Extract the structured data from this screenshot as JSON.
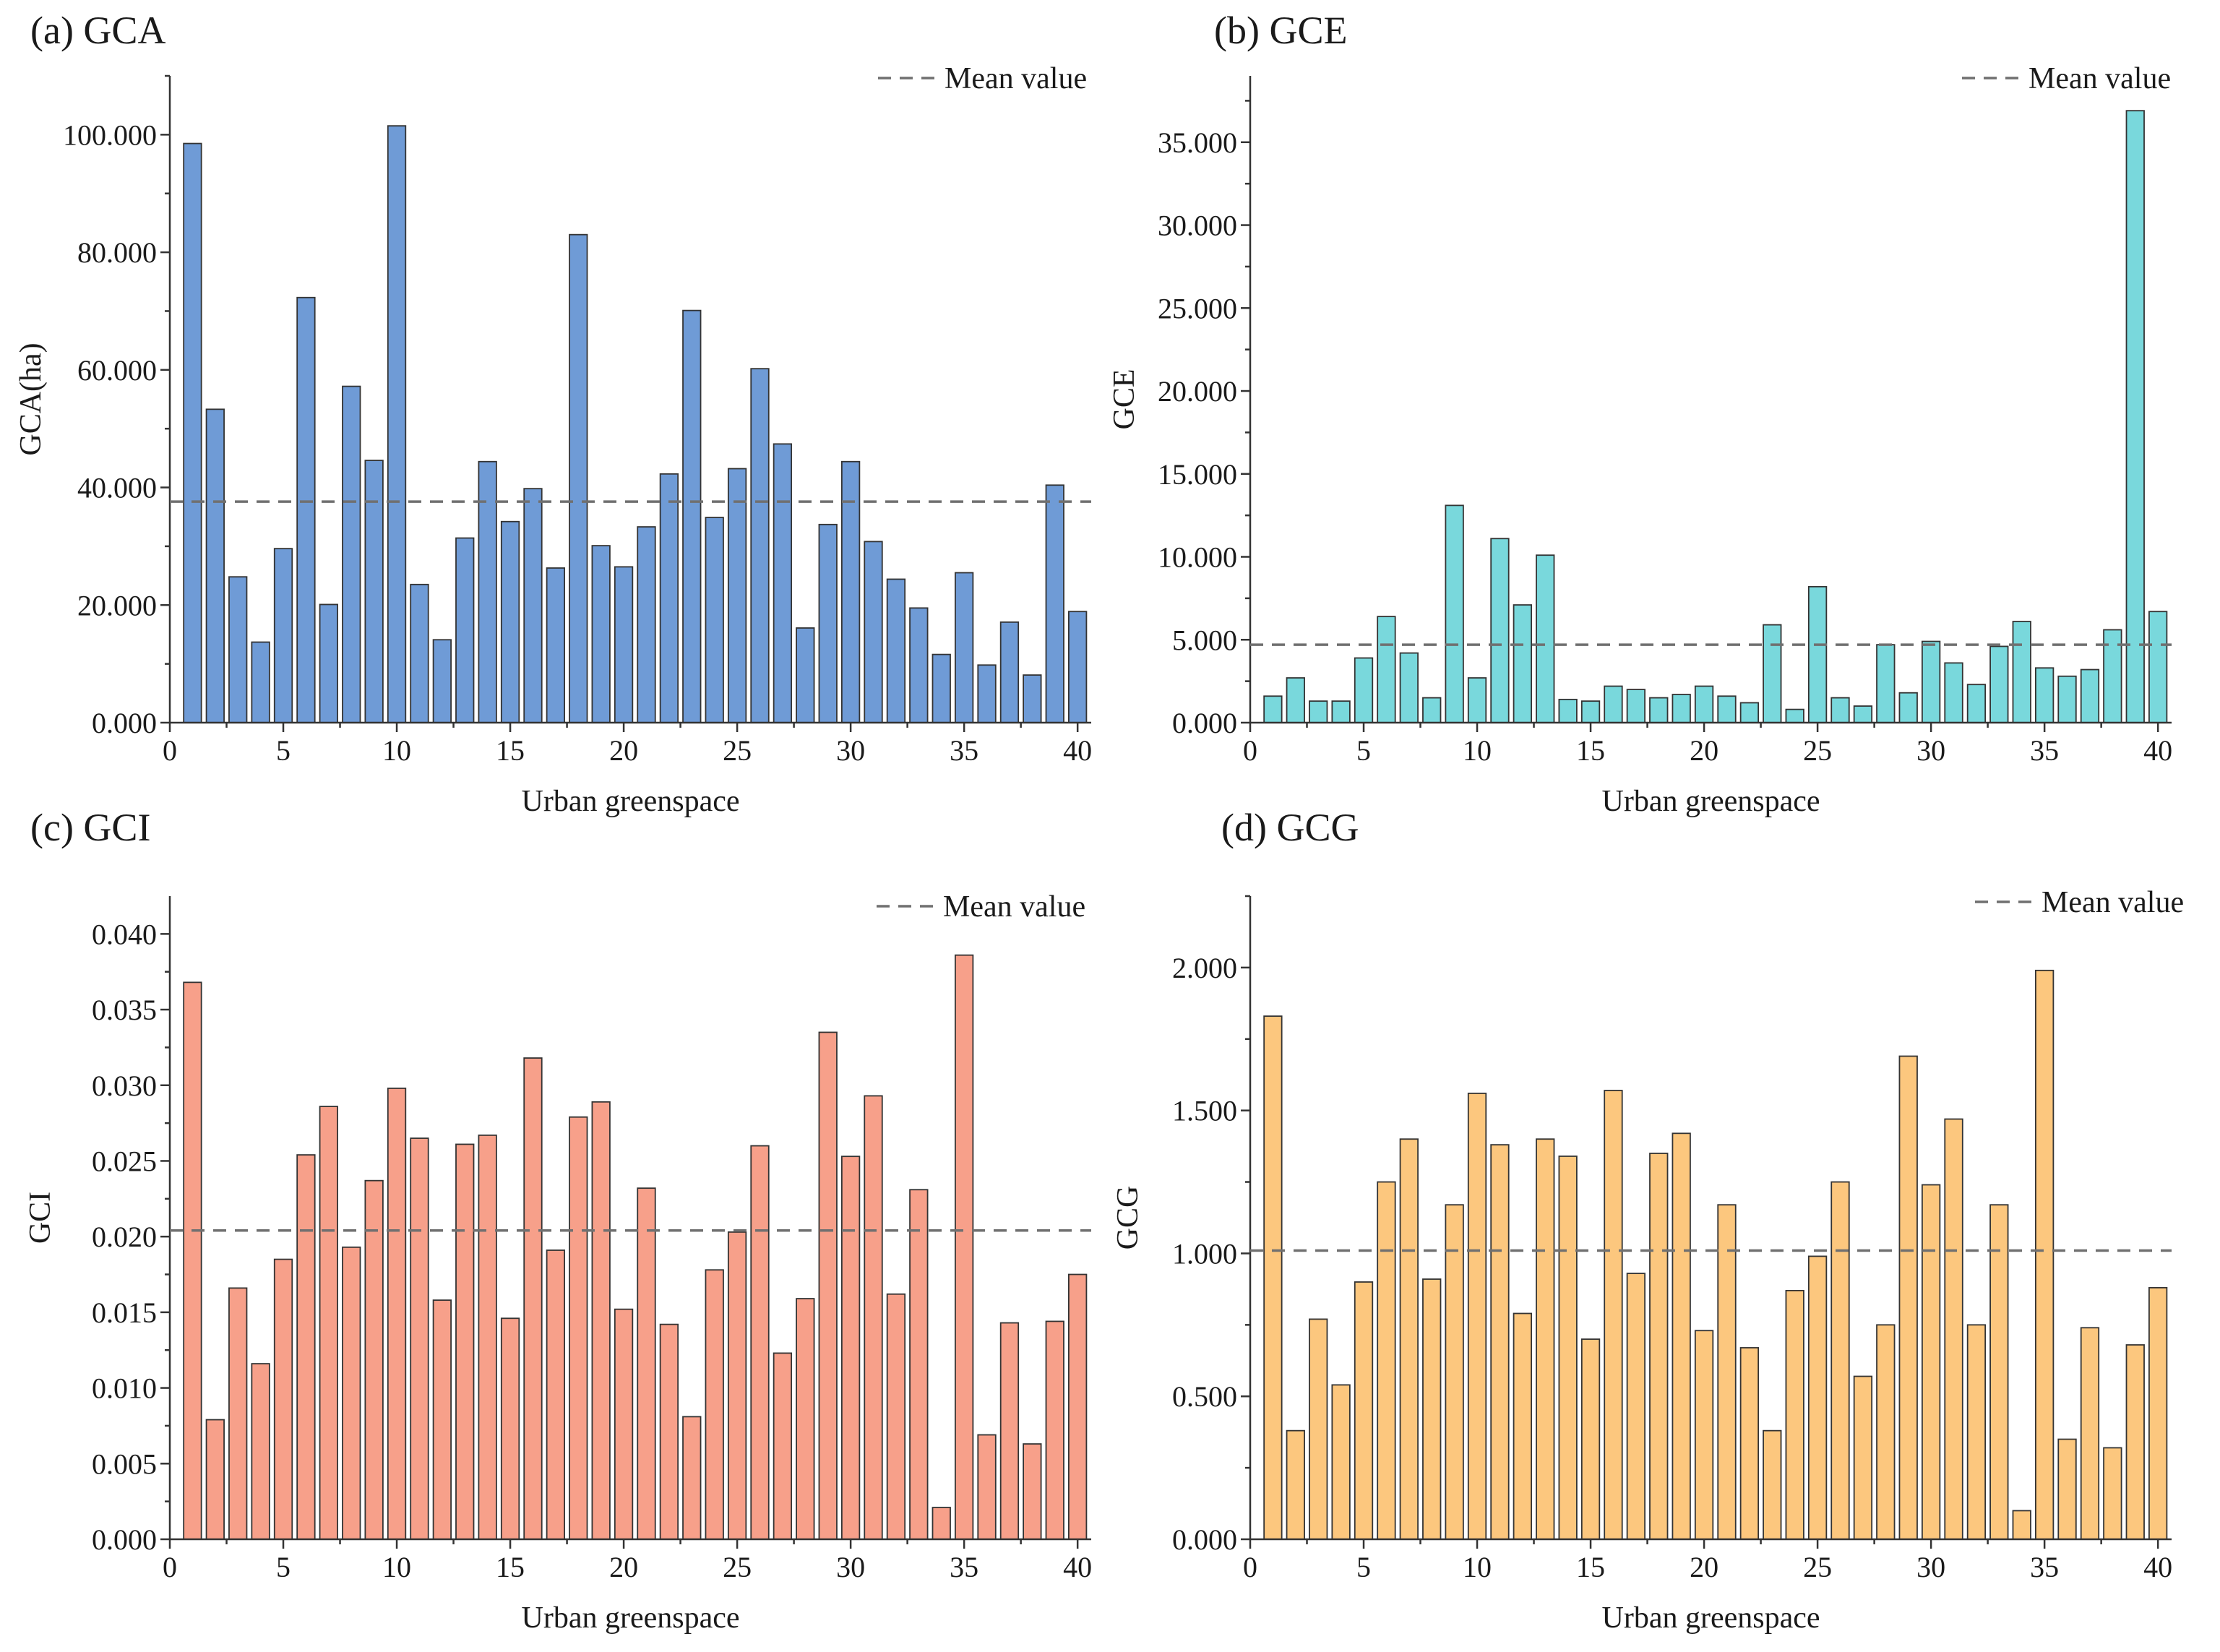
{
  "figure": {
    "background": "#ffffff"
  },
  "chart_data": [
    {
      "id": "a",
      "type": "bar",
      "title": "(a) GCA",
      "xlabel": "Urban greenspace",
      "ylabel": "GCA(ha)",
      "color": "#6f9bd6",
      "xlim": [
        0,
        40.6
      ],
      "ylim": [
        0,
        110
      ],
      "xticks": [
        0,
        5,
        10,
        15,
        20,
        25,
        30,
        35,
        40
      ],
      "xtick_labels": [
        "0",
        "5",
        "10",
        "15",
        "20",
        "25",
        "30",
        "35",
        "40"
      ],
      "yticks": [
        0,
        20,
        40,
        60,
        80,
        100
      ],
      "ytick_labels": [
        "0.000",
        "20.000",
        "40.000",
        "60.000",
        "80.000",
        "100.000"
      ],
      "minor_yticks": [
        10,
        30,
        50,
        70,
        90,
        110
      ],
      "x": [
        1,
        2,
        3,
        4,
        5,
        6,
        7,
        8,
        9,
        10,
        11,
        12,
        13,
        14,
        15,
        16,
        17,
        18,
        19,
        20,
        21,
        22,
        23,
        24,
        25,
        26,
        27,
        28,
        29,
        30,
        31,
        32,
        33,
        34,
        35,
        36,
        37,
        38,
        39,
        40
      ],
      "values": [
        98.5,
        53.3,
        24.8,
        13.7,
        29.6,
        72.3,
        20.1,
        57.2,
        44.6,
        101.5,
        23.5,
        14.1,
        31.4,
        44.4,
        34.2,
        39.8,
        26.3,
        83.0,
        30.1,
        26.5,
        33.3,
        42.3,
        70.1,
        34.9,
        43.2,
        60.2,
        47.4,
        16.1,
        33.7,
        44.4,
        30.8,
        24.4,
        19.5,
        11.6,
        25.5,
        9.8,
        17.1,
        8.1,
        40.4,
        18.9
      ],
      "mean": 37.6,
      "legend": {
        "label": "Mean value",
        "placement": "top-right"
      }
    },
    {
      "id": "b",
      "type": "bar",
      "title": "(b) GCE",
      "xlabel": "Urban greenspace",
      "ylabel": "GCE",
      "color": "#79d8dc",
      "xlim": [
        0,
        40.6
      ],
      "ylim": [
        0,
        39
      ],
      "xticks": [
        0,
        5,
        10,
        15,
        20,
        25,
        30,
        35,
        40
      ],
      "xtick_labels": [
        "0",
        "5",
        "10",
        "15",
        "20",
        "25",
        "30",
        "35",
        "40"
      ],
      "yticks": [
        0,
        5,
        10,
        15,
        20,
        25,
        30,
        35
      ],
      "ytick_labels": [
        "0.000",
        "5.000",
        "10.000",
        "15.000",
        "20.000",
        "25.000",
        "30.000",
        "35.000"
      ],
      "minor_yticks": [
        2.5,
        7.5,
        12.5,
        17.5,
        22.5,
        27.5,
        32.5,
        37.5
      ],
      "x": [
        1,
        2,
        3,
        4,
        5,
        6,
        7,
        8,
        9,
        10,
        11,
        12,
        13,
        14,
        15,
        16,
        17,
        18,
        19,
        20,
        21,
        22,
        23,
        24,
        25,
        26,
        27,
        28,
        29,
        30,
        31,
        32,
        33,
        34,
        35,
        36,
        37,
        38,
        39,
        40
      ],
      "values": [
        1.6,
        2.7,
        1.3,
        1.3,
        3.9,
        6.4,
        4.2,
        1.5,
        13.1,
        2.7,
        11.1,
        7.1,
        10.1,
        1.4,
        1.3,
        2.2,
        2.0,
        1.5,
        1.7,
        2.2,
        1.6,
        1.2,
        5.9,
        0.8,
        8.2,
        1.5,
        1.0,
        4.7,
        1.8,
        4.9,
        3.6,
        2.3,
        4.6,
        6.1,
        3.3,
        2.8,
        3.2,
        5.6,
        36.9,
        6.7
      ],
      "mean": 4.7,
      "legend": {
        "label": "Mean value",
        "placement": "top-right"
      }
    },
    {
      "id": "c",
      "type": "bar",
      "title": "(c) GCI",
      "xlabel": "Urban greenspace",
      "ylabel": "GCI",
      "color": "#f7a08a",
      "xlim": [
        0,
        40.6
      ],
      "ylim": [
        0,
        0.0425
      ],
      "xticks": [
        0,
        5,
        10,
        15,
        20,
        25,
        30,
        35,
        40
      ],
      "xtick_labels": [
        "0",
        "5",
        "10",
        "15",
        "20",
        "25",
        "30",
        "35",
        "40"
      ],
      "yticks": [
        0,
        0.005,
        0.01,
        0.015,
        0.02,
        0.025,
        0.03,
        0.035,
        0.04
      ],
      "ytick_labels": [
        "0.000",
        "0.005",
        "0.010",
        "0.015",
        "0.020",
        "0.025",
        "0.030",
        "0.035",
        "0.040"
      ],
      "minor_yticks": [
        0.0025,
        0.0075,
        0.0125,
        0.0175,
        0.0225,
        0.0275,
        0.0325,
        0.0375
      ],
      "x": [
        1,
        2,
        3,
        4,
        5,
        6,
        7,
        8,
        9,
        10,
        11,
        12,
        13,
        14,
        15,
        16,
        17,
        18,
        19,
        20,
        21,
        22,
        23,
        24,
        25,
        26,
        27,
        28,
        29,
        30,
        31,
        32,
        33,
        34,
        35,
        36,
        37,
        38,
        39,
        40
      ],
      "values": [
        0.0368,
        0.0079,
        0.0166,
        0.0116,
        0.0185,
        0.0254,
        0.0286,
        0.0193,
        0.0237,
        0.0298,
        0.0265,
        0.0158,
        0.0261,
        0.0267,
        0.0146,
        0.0318,
        0.0191,
        0.0279,
        0.0289,
        0.0152,
        0.0232,
        0.0142,
        0.0081,
        0.0178,
        0.0203,
        0.026,
        0.0123,
        0.0159,
        0.0335,
        0.0253,
        0.0293,
        0.0162,
        0.0231,
        0.0021,
        0.0386,
        0.0069,
        0.0143,
        0.0063,
        0.0144,
        0.0175
      ],
      "mean": 0.0204,
      "legend": {
        "label": "Mean value",
        "placement": "top-right"
      }
    },
    {
      "id": "d",
      "type": "bar",
      "title": "(d) GCG",
      "xlabel": "Urban greenspace",
      "ylabel": "GCG",
      "color": "#fcc77e",
      "xlim": [
        0,
        40.6
      ],
      "ylim": [
        0,
        2.25
      ],
      "xticks": [
        0,
        5,
        10,
        15,
        20,
        25,
        30,
        35,
        40
      ],
      "xtick_labels": [
        "0",
        "5",
        "10",
        "15",
        "20",
        "25",
        "30",
        "35",
        "40"
      ],
      "yticks": [
        0,
        0.5,
        1,
        1.5,
        2
      ],
      "ytick_labels": [
        "0.000",
        "0.500",
        "1.000",
        "1.500",
        "2.000"
      ],
      "minor_yticks": [
        0.25,
        0.75,
        1.25,
        1.75,
        2.25
      ],
      "x": [
        1,
        2,
        3,
        4,
        5,
        6,
        7,
        8,
        9,
        10,
        11,
        12,
        13,
        14,
        15,
        16,
        17,
        18,
        19,
        20,
        21,
        22,
        23,
        24,
        25,
        26,
        27,
        28,
        29,
        30,
        31,
        32,
        33,
        34,
        35,
        36,
        37,
        38,
        39,
        40
      ],
      "values": [
        1.83,
        0.38,
        0.77,
        0.54,
        0.9,
        1.25,
        1.4,
        0.91,
        1.17,
        1.56,
        1.38,
        0.79,
        1.4,
        1.34,
        0.7,
        1.57,
        0.93,
        1.35,
        1.42,
        0.73,
        1.17,
        0.67,
        0.38,
        0.87,
        0.99,
        1.25,
        0.57,
        0.75,
        1.69,
        1.24,
        1.47,
        0.75,
        1.17,
        0.1,
        1.99,
        0.35,
        0.74,
        0.32,
        0.68,
        0.88
      ],
      "mean": 1.01,
      "legend": {
        "label": "Mean value",
        "placement": "top-right"
      }
    }
  ]
}
